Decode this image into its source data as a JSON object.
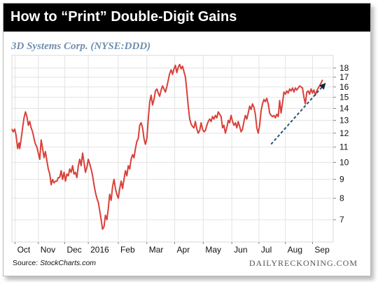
{
  "header": {
    "title": "How to “Print” Double-Digit Gains",
    "subtitle": "3D Systems Corp. (NYSE:DDD)"
  },
  "footer": {
    "source_label": "Source: ",
    "source_name": "StockCharts.com",
    "credit": "DAILYRECKONING.COM"
  },
  "colors": {
    "price_line": "#d9403a",
    "trend_line": "#2c4f7c",
    "grid": "#e3e3e3",
    "title_bg": "#000000",
    "subtitle": "#6f8fae"
  },
  "chart_data": {
    "type": "line",
    "title": "",
    "xlabel": "",
    "ylabel": "",
    "y_scale": "log",
    "ylim": [
      6.2,
      18.8
    ],
    "yticks": [
      7,
      8,
      9,
      10,
      11,
      12,
      13,
      14,
      15,
      16,
      17,
      18
    ],
    "x_tick_labels": [
      "Oct",
      "Nov",
      "Dec",
      "2016",
      "Feb",
      "Mar",
      "Apr",
      "May",
      "Jun",
      "Jul",
      "Aug",
      "Sep"
    ],
    "x_tick_positions": [
      4.5,
      37,
      74,
      107,
      149,
      189,
      228,
      268,
      308,
      346,
      383,
      421
    ],
    "x_range": [
      0,
      450
    ],
    "grid": true,
    "series": [
      {
        "values": [
          [
            0,
            12.3
          ],
          [
            2,
            12.1
          ],
          [
            4,
            12.3
          ],
          [
            6,
            11.8
          ],
          [
            8,
            10.9
          ],
          [
            10,
            11.3
          ],
          [
            11,
            10.9
          ],
          [
            13,
            11.6
          ],
          [
            15,
            12.4
          ],
          [
            17,
            13.2
          ],
          [
            19,
            13.7
          ],
          [
            21,
            13.3
          ],
          [
            23,
            12.6
          ],
          [
            25,
            12.9
          ],
          [
            27,
            12.4
          ],
          [
            29,
            12.1
          ],
          [
            31,
            11.6
          ],
          [
            33,
            11.2
          ],
          [
            35,
            11.0
          ],
          [
            37,
            10.6
          ],
          [
            39,
            10.2
          ],
          [
            41,
            11.5
          ],
          [
            43,
            10.9
          ],
          [
            45,
            10.3
          ],
          [
            47,
            10.7
          ],
          [
            49,
            10.1
          ],
          [
            51,
            9.6
          ],
          [
            53,
            9.3
          ],
          [
            55,
            8.7
          ],
          [
            57,
            9.0
          ],
          [
            59,
            8.8
          ],
          [
            61,
            8.9
          ],
          [
            63,
            8.9
          ],
          [
            65,
            9.1
          ],
          [
            67,
            9.1
          ],
          [
            69,
            9.5
          ],
          [
            71,
            9.0
          ],
          [
            73,
            9.4
          ],
          [
            75,
            8.9
          ],
          [
            77,
            9.3
          ],
          [
            79,
            9.2
          ],
          [
            81,
            9.6
          ],
          [
            83,
            9.4
          ],
          [
            85,
            9.8
          ],
          [
            87,
            9.3
          ],
          [
            89,
            9.4
          ],
          [
            91,
            9.1
          ],
          [
            93,
            9.8
          ],
          [
            95,
            10.2
          ],
          [
            97,
            9.8
          ],
          [
            99,
            10.6
          ],
          [
            101,
            10.0
          ],
          [
            103,
            9.4
          ],
          [
            105,
            9.7
          ],
          [
            107,
            10.2
          ],
          [
            109,
            9.9
          ],
          [
            111,
            9.6
          ],
          [
            113,
            9.2
          ],
          [
            115,
            8.7
          ],
          [
            117,
            8.3
          ],
          [
            119,
            8.0
          ],
          [
            121,
            7.8
          ],
          [
            123,
            7.4
          ],
          [
            125,
            7.0
          ],
          [
            127,
            6.6
          ],
          [
            129,
            6.7
          ],
          [
            131,
            7.2
          ],
          [
            133,
            7.0
          ],
          [
            135,
            7.5
          ],
          [
            137,
            8.2
          ],
          [
            139,
            7.9
          ],
          [
            141,
            8.6
          ],
          [
            143,
            9.0
          ],
          [
            145,
            8.5
          ],
          [
            147,
            8.2
          ],
          [
            149,
            8.0
          ],
          [
            151,
            8.5
          ],
          [
            153,
            8.9
          ],
          [
            155,
            8.5
          ],
          [
            157,
            9.0
          ],
          [
            159,
            9.5
          ],
          [
            161,
            9.2
          ],
          [
            163,
            9.8
          ],
          [
            165,
            9.6
          ],
          [
            167,
            10.2
          ],
          [
            169,
            10.5
          ],
          [
            171,
            10.3
          ],
          [
            173,
            10.9
          ],
          [
            175,
            11.4
          ],
          [
            177,
            11.6
          ],
          [
            179,
            12.6
          ],
          [
            181,
            12.8
          ],
          [
            183,
            12.4
          ],
          [
            185,
            11.6
          ],
          [
            187,
            11.2
          ],
          [
            189,
            11.6
          ],
          [
            191,
            13.1
          ],
          [
            193,
            14.6
          ],
          [
            195,
            15.2
          ],
          [
            197,
            14.3
          ],
          [
            199,
            14.8
          ],
          [
            201,
            15.6
          ],
          [
            203,
            15.8
          ],
          [
            205,
            15.4
          ],
          [
            207,
            15.1
          ],
          [
            209,
            15.7
          ],
          [
            211,
            16.1
          ],
          [
            213,
            15.8
          ],
          [
            215,
            15.5
          ],
          [
            217,
            16.0
          ],
          [
            219,
            16.7
          ],
          [
            221,
            17.4
          ],
          [
            223,
            17.8
          ],
          [
            225,
            17.3
          ],
          [
            227,
            17.9
          ],
          [
            229,
            18.3
          ],
          [
            231,
            17.5
          ],
          [
            233,
            18.1
          ],
          [
            235,
            18.4
          ],
          [
            237,
            17.9
          ],
          [
            239,
            18.2
          ],
          [
            241,
            17.6
          ],
          [
            243,
            17.0
          ],
          [
            245,
            15.6
          ],
          [
            247,
            14.2
          ],
          [
            249,
            13.1
          ],
          [
            251,
            12.7
          ],
          [
            253,
            12.5
          ],
          [
            255,
            12.4
          ],
          [
            257,
            12.9
          ],
          [
            259,
            12.3
          ],
          [
            261,
            12.0
          ],
          [
            263,
            12.2
          ],
          [
            265,
            12.8
          ],
          [
            267,
            12.3
          ],
          [
            269,
            12.1
          ],
          [
            271,
            12.2
          ],
          [
            273,
            12.6
          ],
          [
            275,
            12.9
          ],
          [
            277,
            13.1
          ],
          [
            279,
            12.9
          ],
          [
            281,
            13.3
          ],
          [
            283,
            13.1
          ],
          [
            285,
            13.4
          ],
          [
            287,
            13.2
          ],
          [
            289,
            13.7
          ],
          [
            291,
            13.5
          ],
          [
            293,
            13.3
          ],
          [
            295,
            12.4
          ],
          [
            297,
            12.6
          ],
          [
            299,
            12.0
          ],
          [
            301,
            12.4
          ],
          [
            303,
            13.0
          ],
          [
            305,
            12.8
          ],
          [
            307,
            13.4
          ],
          [
            309,
            12.9
          ],
          [
            311,
            12.6
          ],
          [
            313,
            12.8
          ],
          [
            315,
            12.4
          ],
          [
            317,
            12.9
          ],
          [
            319,
            12.5
          ],
          [
            321,
            12.1
          ],
          [
            323,
            12.3
          ],
          [
            325,
            12.9
          ],
          [
            327,
            13.4
          ],
          [
            329,
            13.1
          ],
          [
            331,
            13.6
          ],
          [
            333,
            14.2
          ],
          [
            335,
            13.9
          ],
          [
            337,
            14.4
          ],
          [
            339,
            14.1
          ],
          [
            341,
            13.5
          ],
          [
            343,
            12.4
          ],
          [
            345,
            12.0
          ],
          [
            347,
            12.6
          ],
          [
            349,
            13.8
          ],
          [
            351,
            14.4
          ],
          [
            353,
            14.8
          ],
          [
            355,
            14.6
          ],
          [
            357,
            14.9
          ],
          [
            359,
            14.4
          ],
          [
            361,
            13.6
          ],
          [
            363,
            13.4
          ],
          [
            365,
            13.3
          ],
          [
            367,
            13.4
          ],
          [
            369,
            13.2
          ],
          [
            371,
            13.5
          ],
          [
            373,
            13.3
          ],
          [
            375,
            14.7
          ],
          [
            377,
            13.6
          ],
          [
            379,
            14.5
          ],
          [
            381,
            15.5
          ],
          [
            383,
            15.3
          ],
          [
            385,
            15.6
          ],
          [
            387,
            15.4
          ],
          [
            389,
            15.8
          ],
          [
            391,
            15.6
          ],
          [
            393,
            15.9
          ],
          [
            395,
            15.5
          ],
          [
            397,
            15.9
          ],
          [
            399,
            15.7
          ],
          [
            401,
            15.9
          ],
          [
            403,
            16.1
          ],
          [
            405,
            16.0
          ],
          [
            407,
            15.9
          ],
          [
            409,
            15.0
          ],
          [
            411,
            14.4
          ],
          [
            413,
            15.5
          ],
          [
            415,
            15.6
          ],
          [
            417,
            15.3
          ],
          [
            419,
            15.8
          ],
          [
            421,
            15.4
          ],
          [
            423,
            15.7
          ],
          [
            425,
            15.2
          ],
          [
            427,
            15.6
          ],
          [
            429,
            15.9
          ],
          [
            431,
            16.1
          ],
          [
            433,
            16.4
          ],
          [
            435,
            16.7
          ]
        ]
      }
    ],
    "annotations": [
      {
        "type": "dashed-arrow",
        "from": [
          363,
          11.2
        ],
        "to": [
          437,
          16.2
        ]
      }
    ]
  }
}
